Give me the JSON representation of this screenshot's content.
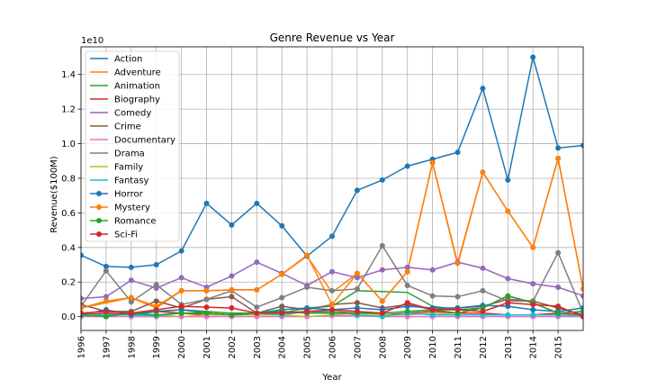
{
  "chart_data": {
    "type": "line",
    "title": "Genre Revenue vs Year",
    "xlabel": "Year",
    "ylabel": "Revenue($100M)",
    "offset_text": "1e10",
    "x": [
      "1996",
      "1997",
      "1998",
      "1999",
      "2000",
      "2001",
      "2002",
      "2003",
      "2004",
      "2005",
      "2006",
      "2007",
      "2008",
      "2009",
      "2010",
      "2011",
      "2012",
      "2013",
      "2014",
      "2015",
      "2016"
    ],
    "x_tick_labels": [
      "1996",
      "1997",
      "1998",
      "1999",
      "2000",
      "2001",
      "2002",
      "2003",
      "2004",
      "2005",
      "2006",
      "2007",
      "2008",
      "2009",
      "2010",
      "2011",
      "2012",
      "2013",
      "2014",
      "2015"
    ],
    "ylim": [
      -0.08,
      1.56
    ],
    "y_ticks": [
      0.0,
      0.2,
      0.4,
      0.6,
      0.8,
      1.0,
      1.2,
      1.4
    ],
    "y_tick_labels": [
      "0.0",
      "0.2",
      "0.4",
      "0.6",
      "0.8",
      "1.0",
      "1.2",
      "1.4"
    ],
    "grid": true,
    "legend_position": "top-left",
    "series": [
      {
        "name": "Action",
        "color": "#1f77b4",
        "marker": false,
        "values": [
          0.355,
          0.29,
          0.285,
          0.3,
          0.38,
          0.655,
          0.53,
          0.655,
          0.525,
          0.35,
          0.465,
          0.73,
          0.79,
          0.87,
          0.91,
          0.95,
          1.32,
          0.79,
          1.5,
          0.975,
          0.99
        ]
      },
      {
        "name": "Adventure",
        "color": "#ff7f0e",
        "marker": false,
        "values": [
          0.05,
          0.08,
          0.11,
          0.05,
          0.15,
          0.15,
          0.155,
          0.155,
          0.245,
          0.35,
          0.14,
          0.25,
          0.09,
          0.26,
          0.89,
          0.3,
          0.835,
          0.61,
          0.4,
          0.915,
          0.16
        ]
      },
      {
        "name": "Animation",
        "color": "#2ca02c",
        "marker": false,
        "values": [
          0.01,
          0.01,
          0.02,
          0.03,
          0.04,
          0.03,
          0.02,
          0.02,
          0.02,
          0.05,
          0.06,
          0.15,
          0.145,
          0.14,
          0.06,
          0.04,
          0.05,
          0.12,
          0.08,
          0.02,
          0.03
        ]
      },
      {
        "name": "Biography",
        "color": "#d62728",
        "marker": false,
        "values": [
          0.01,
          0.02,
          0.01,
          0.03,
          0.02,
          0.01,
          0.01,
          0.02,
          0.03,
          0.02,
          0.03,
          0.02,
          0.01,
          0.02,
          0.03,
          0.02,
          0.02,
          0.01,
          0.01,
          0.02,
          0.01
        ]
      },
      {
        "name": "Comedy",
        "color": "#9467bd",
        "marker": false,
        "values": [
          0.105,
          0.115,
          0.21,
          0.165,
          0.225,
          0.17,
          0.235,
          0.315,
          0.25,
          0.18,
          0.26,
          0.225,
          0.27,
          0.285,
          0.27,
          0.315,
          0.28,
          0.22,
          0.19,
          0.17,
          0.12
        ]
      },
      {
        "name": "Crime",
        "color": "#8c564b",
        "marker": false,
        "values": [
          0.07,
          0.03,
          0.03,
          0.09,
          0.05,
          0.1,
          0.115,
          0.02,
          0.06,
          0.04,
          0.07,
          0.08,
          0.05,
          0.07,
          0.04,
          0.05,
          0.06,
          0.1,
          0.09,
          0.05,
          0.01
        ]
      },
      {
        "name": "Documentary",
        "color": "#e377c2",
        "marker": false,
        "values": [
          0.0,
          0.0,
          0.0,
          0.0,
          0.0,
          0.0,
          0.0,
          0.0,
          0.0,
          0.0,
          0.005,
          0.005,
          0.0,
          0.0,
          0.0,
          0.0,
          0.0,
          0.0,
          0.0,
          0.0,
          0.0
        ]
      },
      {
        "name": "Drama",
        "color": "#7f7f7f",
        "marker": false,
        "values": [
          0.06,
          0.265,
          0.085,
          0.185,
          0.07,
          0.1,
          0.15,
          0.055,
          0.11,
          0.17,
          0.15,
          0.16,
          0.41,
          0.18,
          0.12,
          0.115,
          0.15,
          0.09,
          0.09,
          0.37,
          0.02
        ]
      },
      {
        "name": "Family",
        "color": "#bcbd22",
        "marker": false,
        "values": [
          0.01,
          0.01,
          0.01,
          0.01,
          0.0,
          0.01,
          0.01,
          0.01,
          0.01,
          0.0,
          0.01,
          0.02,
          0.01,
          0.01,
          0.02,
          0.01,
          0.01,
          0.01,
          0.01,
          0.01,
          0.0
        ]
      },
      {
        "name": "Fantasy",
        "color": "#17becf",
        "marker": false,
        "values": [
          0.005,
          0.01,
          0.01,
          0.005,
          0.02,
          0.02,
          0.01,
          0.02,
          0.01,
          0.03,
          0.03,
          0.01,
          0.0,
          0.02,
          0.01,
          0.01,
          0.01,
          0.01,
          0.01,
          0.01,
          0.0
        ]
      },
      {
        "name": "Horror",
        "color": "#1f77b4",
        "marker": true,
        "values": [
          0.01,
          0.04,
          0.01,
          0.03,
          0.04,
          0.02,
          0.01,
          0.02,
          0.04,
          0.05,
          0.04,
          0.05,
          0.04,
          0.06,
          0.05,
          0.05,
          0.065,
          0.06,
          0.04,
          0.03,
          0.05
        ]
      },
      {
        "name": "Mystery",
        "color": "#ff7f0e",
        "marker": true,
        "values": [
          0.05,
          0.09,
          0.11,
          0.06,
          0.15,
          0.15,
          0.155,
          0.155,
          0.245,
          0.355,
          0.07,
          0.25,
          0.09,
          0.26,
          0.89,
          0.31,
          0.835,
          0.61,
          0.4,
          0.915,
          0.16
        ]
      },
      {
        "name": "Romance",
        "color": "#2ca02c",
        "marker": true,
        "values": [
          0.01,
          0.0,
          0.02,
          0.01,
          0.02,
          0.02,
          0.01,
          0.02,
          0.03,
          0.02,
          0.02,
          0.02,
          0.02,
          0.03,
          0.04,
          0.02,
          0.05,
          0.12,
          0.08,
          0.02,
          0.03
        ]
      },
      {
        "name": "Sci-Fi",
        "color": "#d62728",
        "marker": true,
        "values": [
          0.02,
          0.03,
          0.02,
          0.04,
          0.06,
          0.055,
          0.05,
          0.02,
          0.02,
          0.03,
          0.04,
          0.03,
          0.02,
          0.08,
          0.04,
          0.04,
          0.03,
          0.08,
          0.07,
          0.06,
          0.0
        ]
      }
    ],
    "overlay_markers": [
      {
        "color": "#1f77b4",
        "values": [
          0.355,
          0.29,
          0.285,
          0.3,
          0.38,
          0.655,
          0.53,
          0.655,
          0.525,
          0.35,
          0.465,
          0.73,
          0.79,
          0.87,
          0.91,
          0.95,
          1.32,
          0.79,
          1.5,
          0.975,
          0.99
        ]
      },
      {
        "color": "#ff7f0e",
        "values": [
          0.05,
          0.09,
          0.11,
          0.06,
          0.15,
          0.15,
          0.155,
          0.155,
          0.245,
          0.355,
          0.07,
          0.25,
          0.09,
          0.26,
          0.89,
          0.31,
          0.835,
          0.61,
          0.4,
          0.915,
          0.16
        ]
      },
      {
        "color": "#9467bd",
        "values": [
          0.105,
          0.115,
          0.21,
          0.165,
          0.225,
          0.17,
          0.235,
          0.315,
          0.25,
          0.18,
          0.26,
          0.225,
          0.27,
          0.285,
          0.27,
          0.315,
          0.28,
          0.22,
          0.19,
          0.17,
          0.12
        ]
      },
      {
        "color": "#8c564b",
        "values": [
          0.07,
          0.03,
          0.03,
          0.09,
          0.05,
          0.1,
          0.115,
          0.02,
          0.06,
          0.04,
          0.07,
          0.08,
          0.05,
          0.07,
          0.04,
          0.05,
          0.06,
          0.1,
          0.09,
          0.05,
          0.01
        ]
      },
      {
        "color": "#7f7f7f",
        "values": [
          0.06,
          0.265,
          0.085,
          0.185,
          0.07,
          0.1,
          0.15,
          0.055,
          0.11,
          0.17,
          0.15,
          0.16,
          0.41,
          0.18,
          0.12,
          0.115,
          0.15,
          0.09,
          0.09,
          0.37,
          0.02
        ]
      },
      {
        "color": "#e377c2",
        "values": [
          0.0,
          0.0,
          0.0,
          0.0,
          0.0,
          0.0,
          0.0,
          0.0,
          0.0,
          0.0,
          0.005,
          0.005,
          0.0,
          0.0,
          0.0,
          0.0,
          0.0,
          0.0,
          0.0,
          0.0,
          0.0
        ]
      },
      {
        "color": "#17becf",
        "values": [
          0.005,
          0.01,
          0.01,
          0.005,
          0.02,
          0.02,
          0.01,
          0.02,
          0.01,
          0.03,
          0.03,
          0.01,
          0.0,
          0.02,
          0.01,
          0.01,
          0.01,
          0.01,
          0.01,
          0.01,
          0.0
        ]
      }
    ]
  }
}
